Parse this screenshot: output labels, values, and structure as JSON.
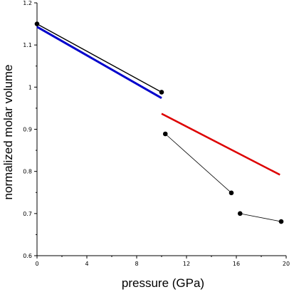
{
  "chart_data": {
    "type": "line",
    "xlabel": "pressure (GPa)",
    "ylabel": "normalized molar volume",
    "xlim": [
      0,
      20
    ],
    "ylim": [
      0.6,
      1.2
    ],
    "x_ticks": [
      0,
      4,
      8,
      12,
      16,
      20
    ],
    "y_ticks": [
      0.6,
      0.7,
      0.8,
      0.9,
      1.0,
      1.1,
      1.2
    ],
    "x_tick_labels": [
      "0",
      "4",
      "8",
      "12",
      "16",
      "20"
    ],
    "y_tick_labels": [
      "0.6",
      "0.7",
      "0.8",
      "0.9",
      "1",
      "1.1",
      "1.2"
    ],
    "grid": false,
    "series": [
      {
        "color": "#000000",
        "markers": true,
        "width": 1.4,
        "points": [
          [
            0.0,
            1.15
          ],
          [
            10.0,
            0.988
          ]
        ]
      },
      {
        "color": "#000000",
        "markers": true,
        "width": 0.8,
        "points": [
          [
            10.3,
            0.889
          ],
          [
            15.6,
            0.749
          ]
        ]
      },
      {
        "color": "#000000",
        "markers": true,
        "width": 0.8,
        "points": [
          [
            16.3,
            0.7
          ],
          [
            19.6,
            0.681
          ]
        ]
      },
      {
        "color": "#0000cc",
        "markers": false,
        "width": 3,
        "points": [
          [
            0.0,
            1.143
          ],
          [
            10.0,
            0.974
          ]
        ]
      },
      {
        "color": "#dd0000",
        "markers": false,
        "width": 2.5,
        "points": [
          [
            10.0,
            0.937
          ],
          [
            19.5,
            0.792
          ]
        ]
      }
    ]
  }
}
